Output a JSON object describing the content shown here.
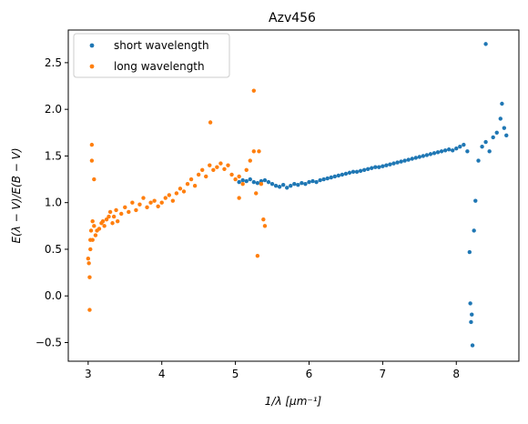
{
  "chart_data": {
    "type": "scatter",
    "title": "Azv456",
    "xlabel": "1/λ [μm⁻¹]",
    "ylabel": "E(λ − V)/E(B − V)",
    "xlim": [
      2.73,
      8.85
    ],
    "ylim": [
      -0.7,
      2.85
    ],
    "xticks": [
      3,
      4,
      5,
      6,
      7,
      8
    ],
    "yticks": [
      -0.5,
      0.0,
      0.5,
      1.0,
      1.5,
      2.0,
      2.5
    ],
    "xtick_labels": [
      "3",
      "4",
      "5",
      "6",
      "7",
      "8"
    ],
    "ytick_labels": [
      "−0.5",
      "0.0",
      "0.5",
      "1.0",
      "1.5",
      "2.0",
      "2.5"
    ],
    "grid": false,
    "legend": {
      "placement": "upper-left"
    },
    "series": [
      {
        "name": "short wavelength",
        "color": "#1f77b4",
        "x": [
          5.05,
          5.1,
          5.15,
          5.2,
          5.25,
          5.3,
          5.35,
          5.4,
          5.45,
          5.5,
          5.55,
          5.6,
          5.65,
          5.7,
          5.75,
          5.8,
          5.85,
          5.9,
          5.95,
          6.0,
          6.05,
          6.1,
          6.15,
          6.2,
          6.25,
          6.3,
          6.35,
          6.4,
          6.45,
          6.5,
          6.55,
          6.6,
          6.65,
          6.7,
          6.75,
          6.8,
          6.85,
          6.9,
          6.95,
          7.0,
          7.05,
          7.1,
          7.15,
          7.2,
          7.25,
          7.3,
          7.35,
          7.4,
          7.45,
          7.5,
          7.55,
          7.6,
          7.65,
          7.7,
          7.75,
          7.8,
          7.85,
          7.9,
          7.95,
          8.0,
          8.05,
          8.1,
          8.15,
          8.18,
          8.19,
          8.2,
          8.21,
          8.22,
          8.24,
          8.26,
          8.3,
          8.35,
          8.4,
          8.45,
          8.5,
          8.55,
          8.6,
          8.62,
          8.65,
          8.68,
          8.4
        ],
        "y": [
          1.22,
          1.24,
          1.23,
          1.25,
          1.22,
          1.21,
          1.23,
          1.24,
          1.22,
          1.2,
          1.18,
          1.17,
          1.19,
          1.16,
          1.18,
          1.2,
          1.19,
          1.21,
          1.2,
          1.22,
          1.23,
          1.22,
          1.24,
          1.25,
          1.26,
          1.27,
          1.28,
          1.29,
          1.3,
          1.31,
          1.32,
          1.33,
          1.33,
          1.34,
          1.35,
          1.36,
          1.37,
          1.38,
          1.38,
          1.39,
          1.4,
          1.41,
          1.42,
          1.43,
          1.44,
          1.45,
          1.46,
          1.47,
          1.48,
          1.49,
          1.5,
          1.51,
          1.52,
          1.53,
          1.54,
          1.55,
          1.56,
          1.57,
          1.56,
          1.58,
          1.6,
          1.62,
          1.55,
          0.47,
          -0.08,
          -0.28,
          -0.2,
          -0.53,
          0.7,
          1.02,
          1.45,
          1.6,
          1.65,
          1.55,
          1.7,
          1.75,
          1.9,
          2.06,
          1.8,
          1.72,
          2.7
        ]
      },
      {
        "name": "long wavelength",
        "color": "#ff7f0e",
        "x": [
          3.0,
          3.01,
          3.02,
          3.02,
          3.03,
          3.03,
          3.04,
          3.05,
          3.05,
          3.06,
          3.08,
          3.1,
          3.12,
          3.15,
          3.18,
          3.2,
          3.22,
          3.25,
          3.28,
          3.3,
          3.33,
          3.35,
          3.38,
          3.4,
          3.45,
          3.5,
          3.55,
          3.6,
          3.65,
          3.7,
          3.75,
          3.8,
          3.85,
          3.9,
          3.95,
          4.0,
          4.05,
          4.1,
          4.15,
          4.2,
          4.25,
          4.3,
          4.35,
          4.4,
          4.45,
          4.5,
          4.55,
          4.6,
          4.65,
          4.7,
          4.75,
          4.8,
          4.85,
          4.9,
          4.95,
          5.0,
          5.05,
          5.1,
          5.15,
          5.2,
          5.25,
          5.28,
          5.3,
          5.32,
          5.35,
          5.38,
          5.4,
          5.25,
          5.05,
          3.08,
          3.06,
          4.66
        ],
        "y": [
          0.4,
          0.35,
          0.2,
          -0.15,
          0.5,
          0.6,
          0.7,
          1.45,
          1.62,
          0.8,
          0.75,
          0.65,
          0.7,
          0.72,
          0.78,
          0.8,
          0.75,
          0.82,
          0.85,
          0.9,
          0.78,
          0.85,
          0.92,
          0.8,
          0.88,
          0.95,
          0.9,
          1.0,
          0.92,
          0.98,
          1.05,
          0.95,
          1.0,
          1.02,
          0.96,
          1.0,
          1.05,
          1.08,
          1.02,
          1.1,
          1.15,
          1.12,
          1.2,
          1.25,
          1.18,
          1.3,
          1.35,
          1.28,
          1.4,
          1.35,
          1.38,
          1.42,
          1.36,
          1.4,
          1.3,
          1.25,
          1.28,
          1.2,
          1.35,
          1.45,
          1.55,
          1.1,
          0.43,
          1.55,
          1.2,
          0.82,
          0.75,
          2.2,
          1.05,
          1.25,
          0.6,
          1.86
        ]
      }
    ]
  }
}
